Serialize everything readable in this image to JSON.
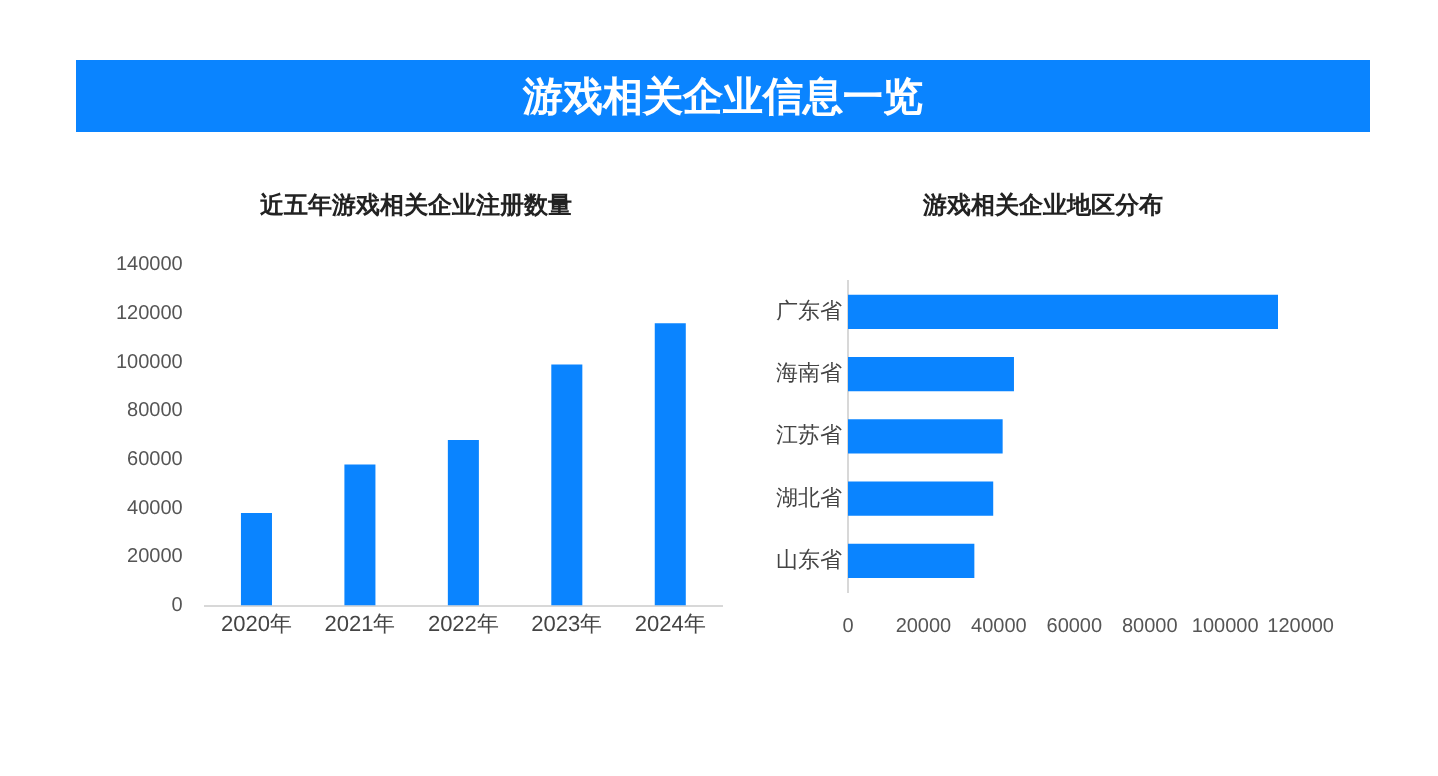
{
  "chart_data": [
    {
      "type": "other",
      "title": "游戏相关企业信息一览"
    },
    {
      "type": "bar",
      "title": "近五年游戏相关企业注册数量",
      "categories": [
        "2020年",
        "2021年",
        "2022年",
        "2023年",
        "2024年"
      ],
      "values": [
        38000,
        58000,
        68000,
        99000,
        116000
      ],
      "color": "#0a84ff",
      "ylim": [
        0,
        140000
      ],
      "yticks": [
        0,
        20000,
        40000,
        60000,
        80000,
        100000,
        120000,
        140000
      ],
      "grid": false
    },
    {
      "type": "bar",
      "orientation": "horizontal",
      "title": "游戏相关企业地区分布",
      "categories": [
        "广东省",
        "海南省",
        "江苏省",
        "湖北省",
        "山东省"
      ],
      "values": [
        114000,
        44000,
        41000,
        38500,
        33500
      ],
      "color": "#0a84ff",
      "xlim": [
        0,
        120000
      ],
      "xticks": [
        0,
        20000,
        40000,
        60000,
        80000,
        100000,
        120000
      ],
      "grid": false
    }
  ]
}
